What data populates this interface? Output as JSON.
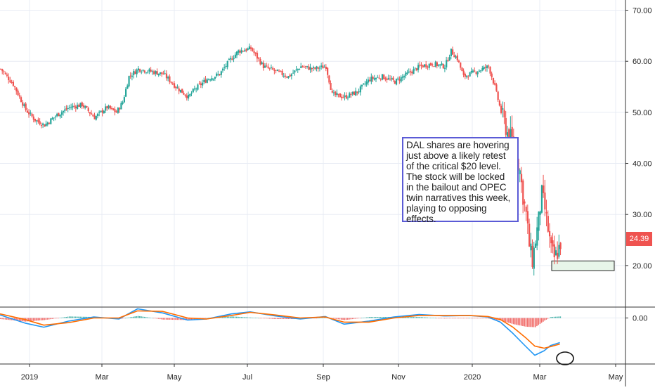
{
  "annotation": {
    "text": "DAL shares are hovering just above a likely retest of the critical $20 level. The stock will be locked in the bailout and OPEC twin narratives this week, playing to opposing effects."
  },
  "last_price_label": "24.39",
  "colors": {
    "up": "#26a69a",
    "down": "#ef5350",
    "grid": "#e8ecf4",
    "macd_line": "#2196f3",
    "signal_line": "#ff6d00",
    "support_fill": "#e8f5e9",
    "annotation_border": "#5b5bd6"
  },
  "chart_data": [
    {
      "type": "candlestick",
      "title": "",
      "xlabel": "",
      "ylabel": "",
      "x_ticks": [
        "2019",
        "Mar",
        "May",
        "Jul",
        "Sep",
        "Nov",
        "2020",
        "Mar",
        "May"
      ],
      "y_ticks": [
        "20.00",
        "30.00",
        "40.00",
        "50.00",
        "60.00",
        "70.00"
      ],
      "ylim": [
        12,
        72
      ],
      "grid": true,
      "support_zone": [
        19.0,
        20.9
      ],
      "last_price": 24.39,
      "close_series": [
        {
          "x": 0,
          "y": 58.5
        },
        {
          "x": 4,
          "y": 55.5
        },
        {
          "x": 8,
          "y": 50.5
        },
        {
          "x": 11,
          "y": 48.5
        },
        {
          "x": 14,
          "y": 47.5
        },
        {
          "x": 18,
          "y": 49.5
        },
        {
          "x": 22,
          "y": 51.0
        },
        {
          "x": 26,
          "y": 51.5
        },
        {
          "x": 30,
          "y": 49.0
        },
        {
          "x": 34,
          "y": 51.0
        },
        {
          "x": 37,
          "y": 50.0
        },
        {
          "x": 39,
          "y": 52.0
        },
        {
          "x": 41,
          "y": 57.0
        },
        {
          "x": 44,
          "y": 58.5
        },
        {
          "x": 48,
          "y": 58.0
        },
        {
          "x": 52,
          "y": 57.5
        },
        {
          "x": 56,
          "y": 55.0
        },
        {
          "x": 60,
          "y": 53.0
        },
        {
          "x": 62,
          "y": 54.5
        },
        {
          "x": 66,
          "y": 56.5
        },
        {
          "x": 70,
          "y": 57.5
        },
        {
          "x": 73,
          "y": 60.0
        },
        {
          "x": 76,
          "y": 62.0
        },
        {
          "x": 80,
          "y": 62.5
        },
        {
          "x": 84,
          "y": 59.0
        },
        {
          "x": 88,
          "y": 58.0
        },
        {
          "x": 92,
          "y": 57.0
        },
        {
          "x": 96,
          "y": 59.0
        },
        {
          "x": 100,
          "y": 58.5
        },
        {
          "x": 104,
          "y": 59.0
        },
        {
          "x": 106,
          "y": 53.5
        },
        {
          "x": 110,
          "y": 53.0
        },
        {
          "x": 114,
          "y": 54.0
        },
        {
          "x": 118,
          "y": 56.5
        },
        {
          "x": 122,
          "y": 57.0
        },
        {
          "x": 126,
          "y": 56.0
        },
        {
          "x": 130,
          "y": 57.5
        },
        {
          "x": 134,
          "y": 59.0
        },
        {
          "x": 138,
          "y": 59.5
        },
        {
          "x": 142,
          "y": 59.0
        },
        {
          "x": 144,
          "y": 62.0
        },
        {
          "x": 146,
          "y": 60.5
        },
        {
          "x": 148,
          "y": 57.0
        },
        {
          "x": 152,
          "y": 58.0
        },
        {
          "x": 156,
          "y": 59.0
        },
        {
          "x": 158,
          "y": 55.0
        },
        {
          "x": 160,
          "y": 50.0
        },
        {
          "x": 162,
          "y": 46.0
        },
        {
          "x": 164,
          "y": 44.0
        },
        {
          "x": 165,
          "y": 41.5
        },
        {
          "x": 166,
          "y": 38.5
        },
        {
          "x": 167,
          "y": 33.5
        },
        {
          "x": 168,
          "y": 30.0
        },
        {
          "x": 169,
          "y": 24.0
        },
        {
          "x": 170,
          "y": 21.0
        },
        {
          "x": 171,
          "y": 25.0
        },
        {
          "x": 172,
          "y": 29.0
        },
        {
          "x": 173,
          "y": 34.0
        },
        {
          "x": 174,
          "y": 31.0
        },
        {
          "x": 175,
          "y": 27.0
        },
        {
          "x": 176,
          "y": 23.0
        },
        {
          "x": 177,
          "y": 21.5
        },
        {
          "x": 178,
          "y": 22.5
        },
        {
          "x": 179,
          "y": 24.39
        }
      ]
    },
    {
      "type": "line",
      "title": "",
      "y_ticks": [
        "0.00"
      ],
      "ylim": [
        -9,
        2
      ],
      "series": [
        {
          "color": "#2196f3",
          "points": [
            {
              "x": 0,
              "y": 0.6
            },
            {
              "x": 8,
              "y": -1.0
            },
            {
              "x": 14,
              "y": -1.8
            },
            {
              "x": 22,
              "y": -0.6
            },
            {
              "x": 30,
              "y": 0.2
            },
            {
              "x": 38,
              "y": -0.2
            },
            {
              "x": 44,
              "y": 1.8
            },
            {
              "x": 52,
              "y": 1.0
            },
            {
              "x": 60,
              "y": -0.4
            },
            {
              "x": 66,
              "y": -0.2
            },
            {
              "x": 74,
              "y": 0.8
            },
            {
              "x": 80,
              "y": 1.2
            },
            {
              "x": 88,
              "y": 0.4
            },
            {
              "x": 96,
              "y": -0.2
            },
            {
              "x": 104,
              "y": 0.3
            },
            {
              "x": 110,
              "y": -1.2
            },
            {
              "x": 118,
              "y": -0.6
            },
            {
              "x": 126,
              "y": 0.2
            },
            {
              "x": 134,
              "y": 0.7
            },
            {
              "x": 142,
              "y": 0.4
            },
            {
              "x": 150,
              "y": 0.5
            },
            {
              "x": 156,
              "y": 0.2
            },
            {
              "x": 160,
              "y": -0.8
            },
            {
              "x": 164,
              "y": -3.0
            },
            {
              "x": 168,
              "y": -5.5
            },
            {
              "x": 171,
              "y": -7.3
            },
            {
              "x": 174,
              "y": -6.4
            },
            {
              "x": 176,
              "y": -5.4
            },
            {
              "x": 179,
              "y": -4.8
            }
          ]
        },
        {
          "color": "#ff6d00",
          "points": [
            {
              "x": 0,
              "y": 0.8
            },
            {
              "x": 8,
              "y": -0.3
            },
            {
              "x": 14,
              "y": -1.4
            },
            {
              "x": 22,
              "y": -0.9
            },
            {
              "x": 30,
              "y": 0.0
            },
            {
              "x": 38,
              "y": 0.0
            },
            {
              "x": 44,
              "y": 1.4
            },
            {
              "x": 52,
              "y": 1.3
            },
            {
              "x": 60,
              "y": 0.0
            },
            {
              "x": 66,
              "y": -0.2
            },
            {
              "x": 74,
              "y": 0.5
            },
            {
              "x": 80,
              "y": 1.1
            },
            {
              "x": 88,
              "y": 0.6
            },
            {
              "x": 96,
              "y": 0.0
            },
            {
              "x": 104,
              "y": 0.2
            },
            {
              "x": 110,
              "y": -0.8
            },
            {
              "x": 118,
              "y": -0.8
            },
            {
              "x": 126,
              "y": 0.0
            },
            {
              "x": 134,
              "y": 0.5
            },
            {
              "x": 142,
              "y": 0.5
            },
            {
              "x": 150,
              "y": 0.5
            },
            {
              "x": 156,
              "y": 0.3
            },
            {
              "x": 160,
              "y": -0.3
            },
            {
              "x": 164,
              "y": -1.8
            },
            {
              "x": 168,
              "y": -3.8
            },
            {
              "x": 171,
              "y": -5.5
            },
            {
              "x": 174,
              "y": -5.9
            },
            {
              "x": 176,
              "y": -5.6
            },
            {
              "x": 179,
              "y": -5.1
            }
          ]
        }
      ]
    }
  ]
}
